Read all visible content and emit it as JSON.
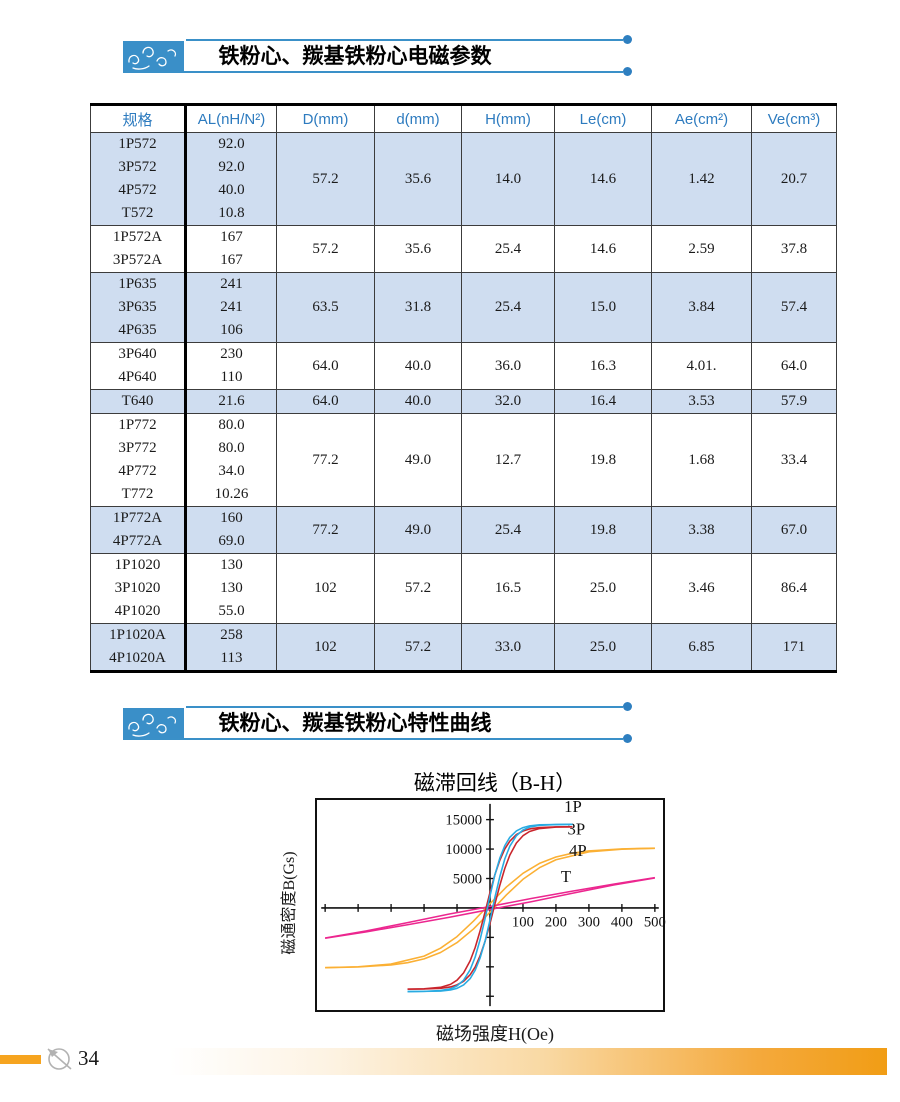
{
  "banner1": {
    "title": "铁粉心、羰基铁粉心电磁参数"
  },
  "banner2": {
    "title": "铁粉心、羰基铁粉心特性曲线"
  },
  "table": {
    "headers": [
      "规格",
      "AL(nH/N²)",
      "D(mm)",
      "d(mm)",
      "H(mm)",
      "Le(cm)",
      "Ae(cm²)",
      "Ve(cm³)"
    ],
    "groups": [
      {
        "shaded": true,
        "rows": [
          [
            "1P572",
            "92.0"
          ],
          [
            "3P572",
            "92.0"
          ],
          [
            "4P572",
            "40.0"
          ],
          [
            "T572",
            "10.8"
          ]
        ],
        "merged": [
          "57.2",
          "35.6",
          "14.0",
          "14.6",
          "1.42",
          "20.7"
        ]
      },
      {
        "shaded": false,
        "rows": [
          [
            "1P572A",
            "167"
          ],
          [
            "3P572A",
            "167"
          ]
        ],
        "merged": [
          "57.2",
          "35.6",
          "25.4",
          "14.6",
          "2.59",
          "37.8"
        ]
      },
      {
        "shaded": true,
        "rows": [
          [
            "1P635",
            "241"
          ],
          [
            "3P635",
            "241"
          ],
          [
            "4P635",
            "106"
          ]
        ],
        "merged": [
          "63.5",
          "31.8",
          "25.4",
          "15.0",
          "3.84",
          "57.4"
        ]
      },
      {
        "shaded": false,
        "rows": [
          [
            "3P640",
            "230"
          ],
          [
            "4P640",
            "110"
          ]
        ],
        "merged": [
          "64.0",
          "40.0",
          "36.0",
          "16.3",
          "4.01.",
          "64.0"
        ]
      },
      {
        "shaded": true,
        "rows": [
          [
            "T640",
            "21.6"
          ]
        ],
        "merged": [
          "64.0",
          "40.0",
          "32.0",
          "16.4",
          "3.53",
          "57.9"
        ]
      },
      {
        "shaded": false,
        "rows": [
          [
            "1P772",
            "80.0"
          ],
          [
            "3P772",
            "80.0"
          ],
          [
            "4P772",
            "34.0"
          ],
          [
            "T772",
            "10.26"
          ]
        ],
        "merged": [
          "77.2",
          "49.0",
          "12.7",
          "19.8",
          "1.68",
          "33.4"
        ]
      },
      {
        "shaded": true,
        "rows": [
          [
            "1P772A",
            "160"
          ],
          [
            "4P772A",
            "69.0"
          ]
        ],
        "merged": [
          "77.2",
          "49.0",
          "25.4",
          "19.8",
          "3.38",
          "67.0"
        ]
      },
      {
        "shaded": false,
        "rows": [
          [
            "1P1020",
            "130"
          ],
          [
            "3P1020",
            "130"
          ],
          [
            "4P1020",
            "55.0"
          ]
        ],
        "merged": [
          "102",
          "57.2",
          "16.5",
          "25.0",
          "3.46",
          "86.4"
        ]
      },
      {
        "shaded": true,
        "rows": [
          [
            "1P1020A",
            "258"
          ],
          [
            "4P1020A",
            "113"
          ]
        ],
        "merged": [
          "102",
          "57.2",
          "33.0",
          "25.0",
          "6.85",
          "171"
        ]
      }
    ]
  },
  "chart_data": {
    "type": "line",
    "title": "磁滞回线（B-H）",
    "xlabel": "磁场强度H(Oe)",
    "ylabel": "磁通密度B(Gs)",
    "xlim": [
      -520,
      535
    ],
    "ylim": [
      -18300,
      18300
    ],
    "grid": false,
    "x_ticks_labeled": [
      100,
      200,
      300,
      400,
      500
    ],
    "x_ticks_unlabeled": [
      -100,
      -200,
      -300,
      -400,
      -500
    ],
    "y_ticks_labeled": [
      5000,
      10000,
      15000
    ],
    "y_ticks_unlabeled": [
      -5000,
      -10000,
      -15000
    ],
    "legend_position": "inline-top-right",
    "loop_note": "each series is a hysteresis loop: the branch below plus its mirror through the origin",
    "series": [
      {
        "name": "4P",
        "color": "#fbb034",
        "label_pos": [
          240,
          8800
        ],
        "branch": [
          [
            -500,
            -10140
          ],
          [
            -400,
            -9990
          ],
          [
            -300,
            -9530
          ],
          [
            -200,
            -8180
          ],
          [
            -150,
            -6840
          ],
          [
            -100,
            -4860
          ],
          [
            -50,
            -2240
          ],
          [
            0,
            720
          ],
          [
            50,
            3560
          ],
          [
            100,
            5890
          ],
          [
            150,
            7560
          ],
          [
            200,
            8650
          ],
          [
            250,
            9300
          ],
          [
            300,
            9690
          ],
          [
            400,
            10040
          ],
          [
            500,
            10150
          ]
        ]
      },
      {
        "name": "T",
        "color": "#ec268f",
        "label_pos": [
          215,
          4400
        ],
        "branch": [
          [
            -500,
            -5100
          ],
          [
            -375,
            -3900
          ],
          [
            -250,
            -2500
          ],
          [
            -125,
            -1050
          ],
          [
            0,
            250
          ],
          [
            125,
            1600
          ],
          [
            250,
            2850
          ],
          [
            375,
            4050
          ],
          [
            500,
            5150
          ]
        ]
      },
      {
        "name": "3P",
        "color": "#c9252c",
        "label_pos": [
          235,
          12500
        ],
        "branch": [
          [
            -250,
            -13790
          ],
          [
            -200,
            -13740
          ],
          [
            -150,
            -13480
          ],
          [
            -120,
            -12980
          ],
          [
            -100,
            -12270
          ],
          [
            -80,
            -11040
          ],
          [
            -60,
            -8960
          ],
          [
            -45,
            -6720
          ],
          [
            -30,
            -3900
          ],
          [
            -15,
            -670
          ],
          [
            0,
            2640
          ],
          [
            15,
            5660
          ],
          [
            30,
            8140
          ],
          [
            45,
            10010
          ],
          [
            60,
            11340
          ],
          [
            80,
            12460
          ],
          [
            100,
            13070
          ],
          [
            120,
            13420
          ],
          [
            150,
            13650
          ],
          [
            200,
            13770
          ],
          [
            250,
            13790
          ]
        ]
      },
      {
        "name": "1P",
        "color": "#29abe2",
        "label_pos": [
          225,
          16300
        ],
        "branch": [
          [
            -250,
            -14200
          ],
          [
            -200,
            -14170
          ],
          [
            -150,
            -14030
          ],
          [
            -120,
            -13730
          ],
          [
            -100,
            -13230
          ],
          [
            -80,
            -12260
          ],
          [
            -60,
            -10480
          ],
          [
            -45,
            -8330
          ],
          [
            -30,
            -5390
          ],
          [
            -15,
            -1800
          ],
          [
            0,
            2050
          ],
          [
            15,
            5610
          ],
          [
            30,
            8500
          ],
          [
            45,
            10590
          ],
          [
            60,
            12000
          ],
          [
            80,
            13090
          ],
          [
            100,
            13650
          ],
          [
            120,
            13930
          ],
          [
            150,
            14110
          ],
          [
            200,
            14170
          ],
          [
            250,
            14200
          ]
        ]
      }
    ]
  },
  "footer": {
    "page_number": "34"
  }
}
